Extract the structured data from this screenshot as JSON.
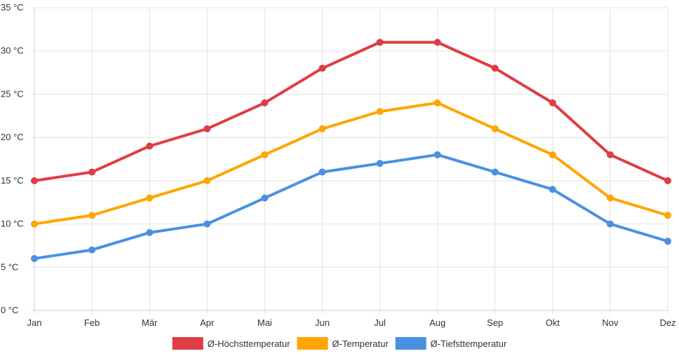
{
  "chart_data": {
    "type": "line",
    "categories": [
      "Jan",
      "Feb",
      "Mär",
      "Apr",
      "Mai",
      "Jun",
      "Jul",
      "Aug",
      "Sep",
      "Okt",
      "Nov",
      "Dez"
    ],
    "y_ticks": [
      "0 °C",
      "5 °C",
      "10 °C",
      "15 °C",
      "20 °C",
      "25 °C",
      "30 °C",
      "35 °C"
    ],
    "ylim": [
      0,
      35
    ],
    "grid": true,
    "legend_position": "bottom",
    "series": [
      {
        "name": "Ø-Höchsttemperatur",
        "color": "#e03c45",
        "values": [
          15,
          16,
          19,
          21,
          24,
          28,
          31,
          31,
          28,
          24,
          18,
          15
        ]
      },
      {
        "name": "Ø-Temperatur",
        "color": "#ffa500",
        "values": [
          10,
          11,
          13,
          15,
          18,
          21,
          23,
          24,
          21,
          18,
          13,
          11
        ]
      },
      {
        "name": "Ø-Tiefsttemperatur",
        "color": "#4a90e2",
        "values": [
          6,
          7,
          9,
          10,
          13,
          16,
          17,
          18,
          16,
          14,
          10,
          8
        ]
      }
    ]
  }
}
